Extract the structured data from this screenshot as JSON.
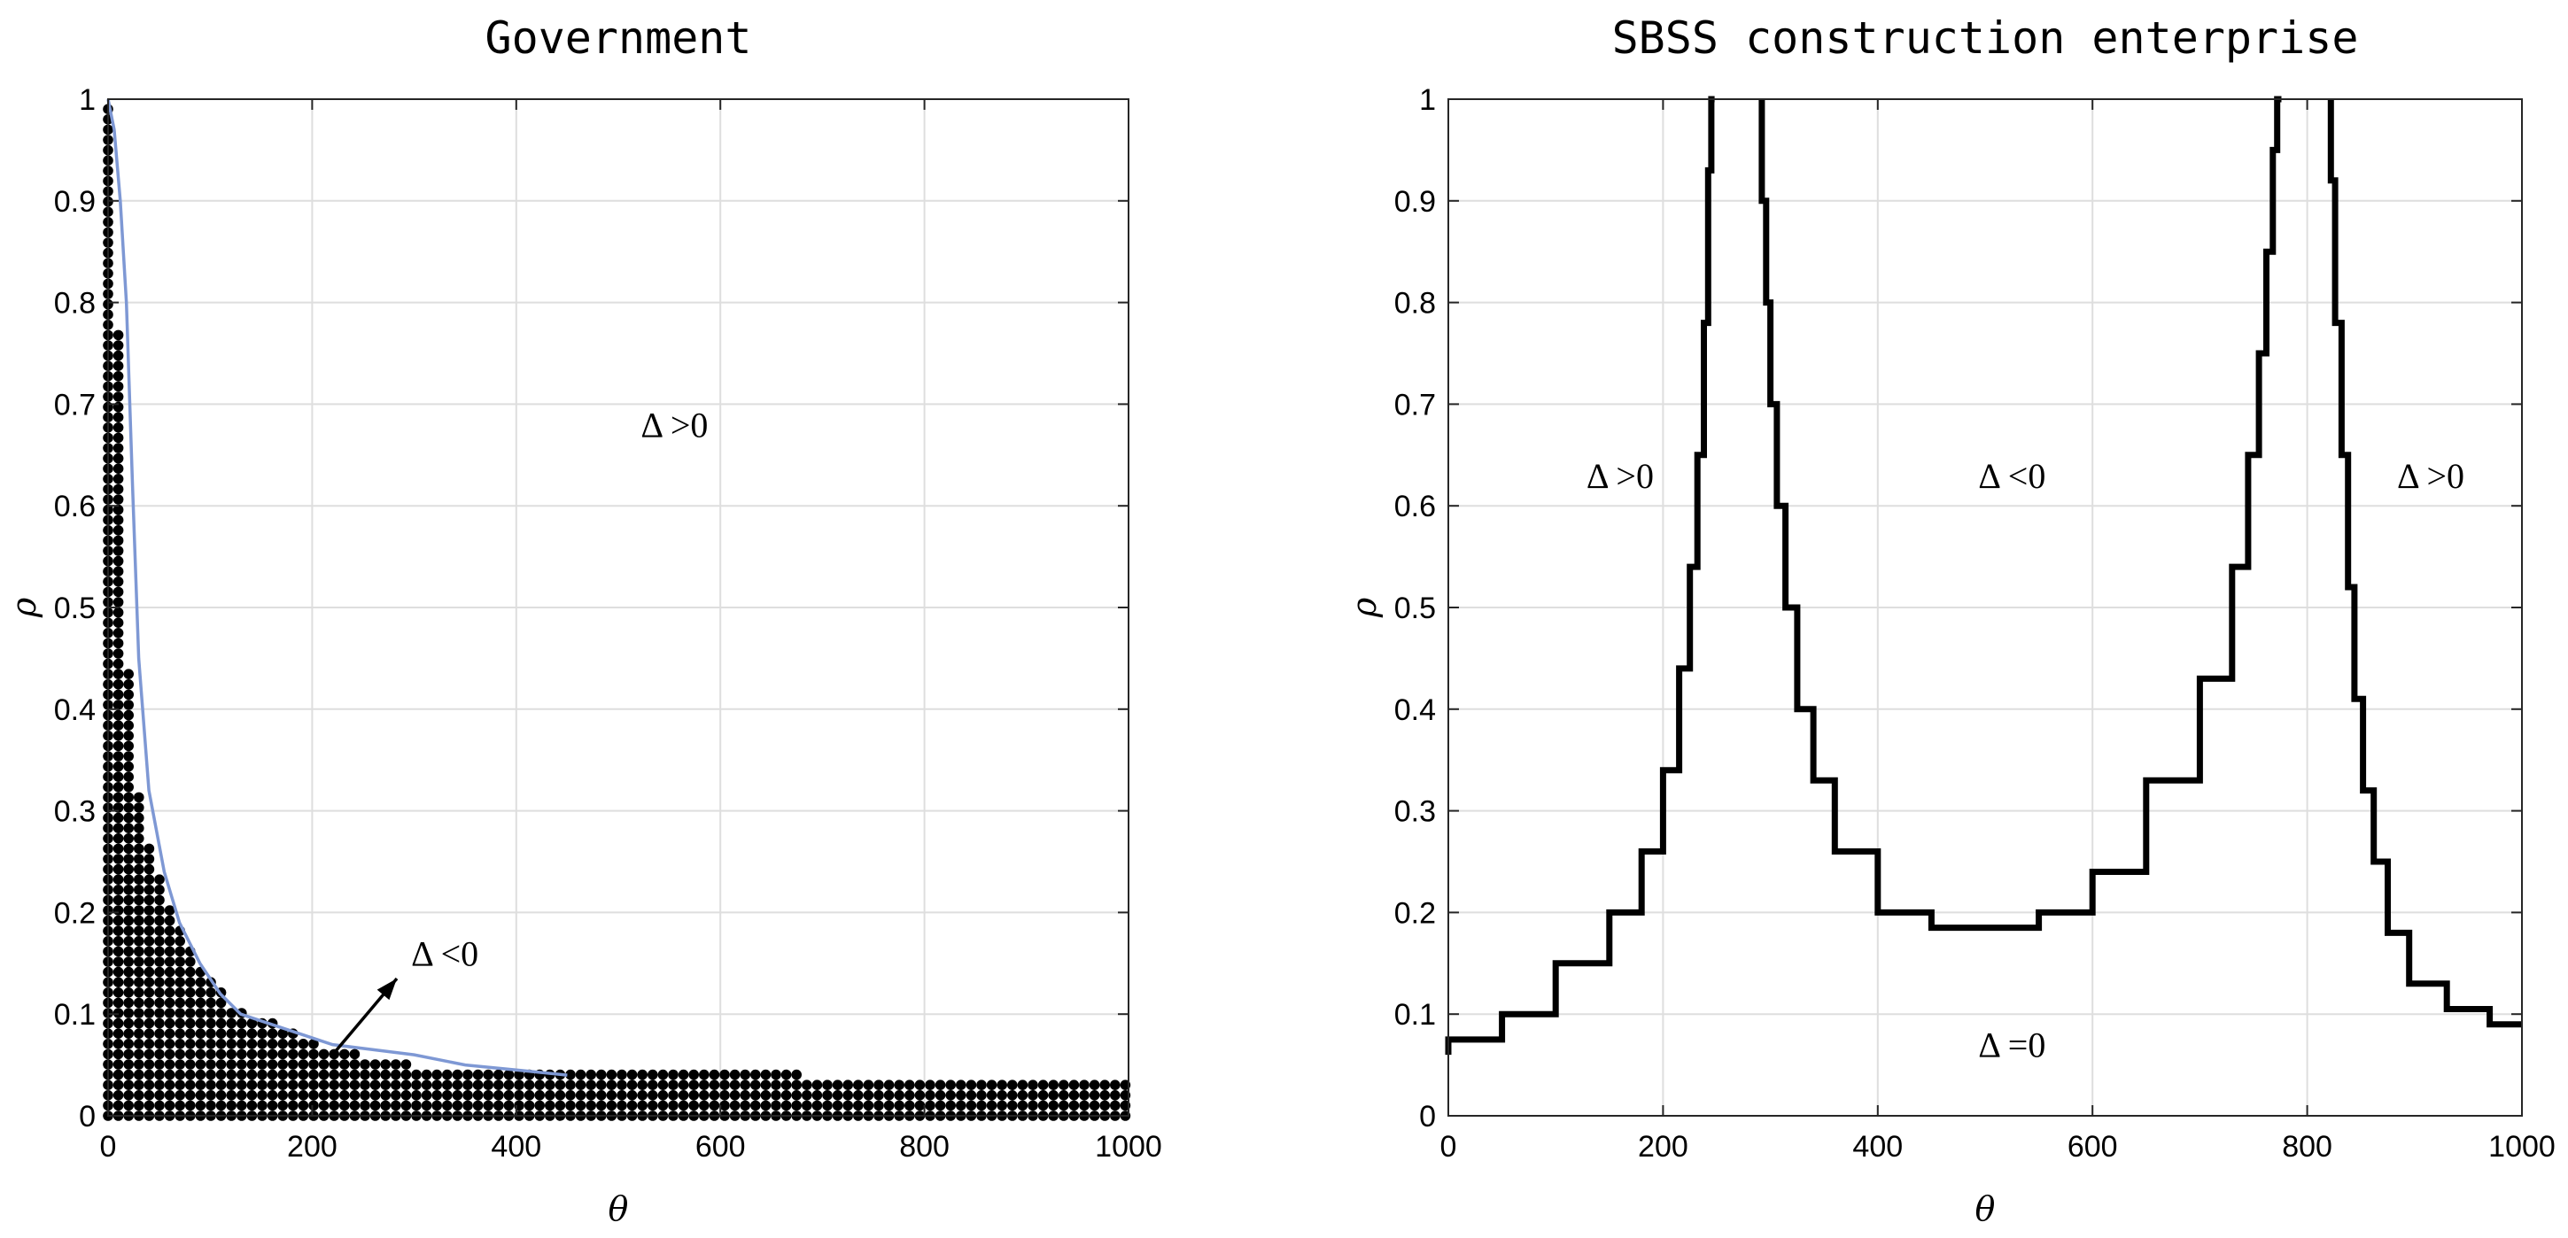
{
  "chart_data": [
    {
      "type": "scatter",
      "title": "Government",
      "xlabel": "θ",
      "ylabel": "ρ",
      "xlim": [
        0,
        1000
      ],
      "ylim": [
        0,
        1
      ],
      "xticks": [
        "0",
        "200",
        "400",
        "600",
        "800",
        "1000"
      ],
      "yticks": [
        "0",
        "0.1",
        "0.2",
        "0.3",
        "0.4",
        "0.5",
        "0.6",
        "0.7",
        "0.8",
        "0.9",
        "1"
      ],
      "grid": true,
      "boundary_color": "#7e98d4",
      "region_top": [
        [
          0,
          1.0
        ],
        [
          6,
          0.94
        ],
        [
          17,
          0.48
        ],
        [
          30,
          0.32
        ],
        [
          45,
          0.25
        ],
        [
          60,
          0.21
        ],
        [
          75,
          0.18
        ],
        [
          90,
          0.15
        ],
        [
          105,
          0.13
        ],
        [
          120,
          0.11
        ],
        [
          140,
          0.1
        ],
        [
          165,
          0.09
        ],
        [
          190,
          0.08
        ],
        [
          215,
          0.065
        ],
        [
          250,
          0.06
        ],
        [
          300,
          0.05
        ],
        [
          400,
          0.045
        ],
        [
          1000,
          0.035
        ]
      ],
      "boundary": {
        "x": [
          0,
          6,
          12,
          18,
          24,
          30,
          40,
          55,
          70,
          90,
          110,
          130,
          160,
          190,
          220,
          260,
          300,
          350,
          400,
          450
        ],
        "y": [
          1.0,
          0.97,
          0.9,
          0.8,
          0.62,
          0.45,
          0.32,
          0.24,
          0.19,
          0.15,
          0.12,
          0.1,
          0.09,
          0.08,
          0.07,
          0.065,
          0.06,
          0.05,
          0.045,
          0.04
        ]
      },
      "annotations": [
        {
          "text": "Δ >0",
          "x": 555,
          "y": 0.68
        },
        {
          "text": "Δ <0",
          "x": 330,
          "y": 0.16
        }
      ],
      "arrow": {
        "from": [
          220,
          0.06
        ],
        "to": [
          283,
          0.135
        ]
      }
    },
    {
      "type": "line",
      "title": "SBSS construction enterprise",
      "xlabel": "θ",
      "ylabel": "ρ",
      "xlim": [
        0,
        1000
      ],
      "ylim": [
        0,
        1
      ],
      "xticks": [
        "0",
        "200",
        "400",
        "600",
        "800",
        "1000"
      ],
      "yticks": [
        "0",
        "0.1",
        "0.2",
        "0.3",
        "0.4",
        "0.5",
        "0.6",
        "0.7",
        "0.8",
        "0.9",
        "1"
      ],
      "grid": true,
      "series": [
        {
          "x": [
            0,
            50,
            100,
            150,
            180,
            200,
            215,
            225,
            232,
            238,
            242,
            245,
            248
          ],
          "y": [
            0.06,
            0.075,
            0.1,
            0.15,
            0.2,
            0.26,
            0.34,
            0.44,
            0.54,
            0.65,
            0.78,
            0.93,
            1.0
          ]
        },
        {
          "x": [
            292,
            296,
            300,
            306,
            314,
            325,
            340,
            360,
            400,
            450,
            500,
            550,
            600,
            650,
            700,
            730,
            745,
            755,
            762,
            768,
            772,
            776
          ],
          "y": [
            1.0,
            0.9,
            0.8,
            0.7,
            0.6,
            0.5,
            0.4,
            0.33,
            0.26,
            0.2,
            0.185,
            0.185,
            0.2,
            0.24,
            0.33,
            0.43,
            0.54,
            0.65,
            0.75,
            0.85,
            0.95,
            1.0
          ]
        },
        {
          "x": [
            822,
            826,
            832,
            838,
            844,
            852,
            862,
            875,
            895,
            930,
            970,
            1000
          ],
          "y": [
            1.0,
            0.92,
            0.78,
            0.65,
            0.52,
            0.41,
            0.32,
            0.25,
            0.18,
            0.13,
            0.105,
            0.09
          ]
        }
      ],
      "annotations": [
        {
          "text": "Δ >0",
          "x": 160,
          "y": 0.63
        },
        {
          "text": "Δ <0",
          "x": 525,
          "y": 0.63
        },
        {
          "text": "Δ >0",
          "x": 915,
          "y": 0.63
        },
        {
          "text": "Δ =0",
          "x": 525,
          "y": 0.07
        }
      ]
    }
  ]
}
